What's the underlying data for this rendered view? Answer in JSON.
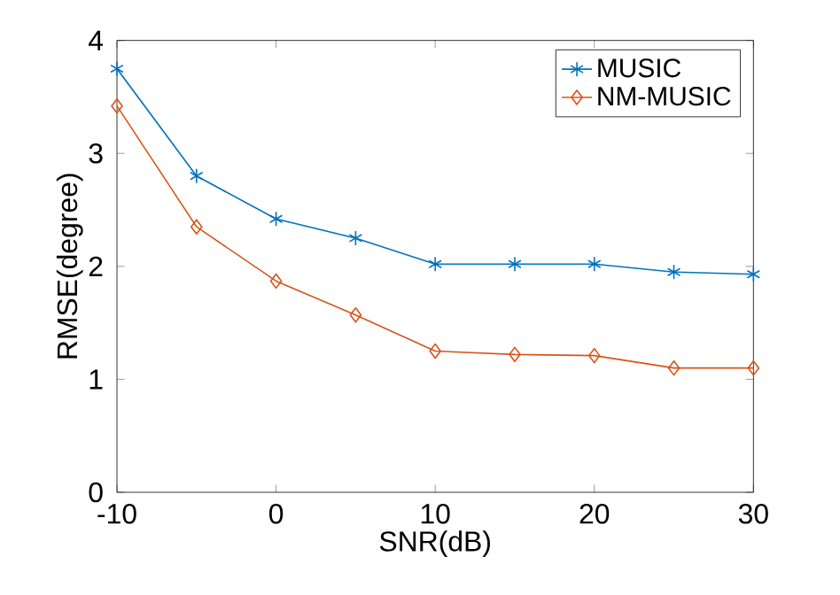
{
  "chart_data": {
    "type": "line",
    "xlabel": "SNR(dB)",
    "ylabel": "RMSE(degree)",
    "x": [
      -10,
      -5,
      0,
      5,
      10,
      15,
      20,
      25,
      30
    ],
    "series": [
      {
        "name": "MUSIC",
        "color": "#0072bd",
        "marker": "cross",
        "values": [
          3.75,
          2.8,
          2.42,
          2.25,
          2.02,
          2.02,
          2.02,
          1.95,
          1.93
        ]
      },
      {
        "name": "NM-MUSIC",
        "color": "#d95319",
        "marker": "diamond",
        "values": [
          3.42,
          2.35,
          1.87,
          1.57,
          1.25,
          1.22,
          1.21,
          1.1,
          1.1
        ]
      }
    ],
    "xlim": [
      -10,
      30
    ],
    "ylim": [
      0,
      4
    ],
    "xticks": [
      -10,
      0,
      10,
      20,
      30
    ],
    "yticks": [
      0,
      1,
      2,
      3,
      4
    ],
    "grid": false,
    "legend": "top right",
    "line_style": "solid"
  }
}
